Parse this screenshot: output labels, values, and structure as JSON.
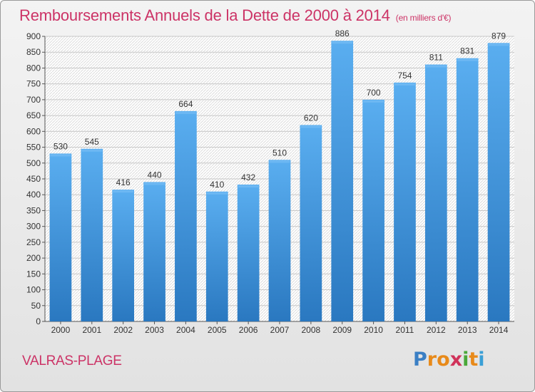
{
  "chart_data": {
    "type": "bar",
    "title": "Remboursements Annuels de la Dette de 2000 à 2014",
    "subtitle": "(en milliers d'€)",
    "categories": [
      "2000",
      "2001",
      "2002",
      "2003",
      "2004",
      "2005",
      "2006",
      "2007",
      "2008",
      "2009",
      "2010",
      "2011",
      "2012",
      "2013",
      "2014"
    ],
    "values": [
      530,
      545,
      416,
      440,
      664,
      410,
      432,
      510,
      620,
      886,
      700,
      754,
      811,
      831,
      879
    ],
    "ylim": [
      0,
      900
    ],
    "yticks": [
      0,
      50,
      100,
      150,
      200,
      250,
      300,
      350,
      400,
      450,
      500,
      550,
      600,
      650,
      700,
      750,
      800,
      850,
      900
    ],
    "grid": true,
    "bar_color": "#3a8fd6"
  },
  "footer": {
    "location": "VALRAS-PLAGE",
    "logo_letters": [
      "P",
      "r",
      "o",
      "x",
      "i",
      "t",
      "i"
    ],
    "logo_colors": [
      "#3a7fc4",
      "#e88a1a",
      "#e88a1a",
      "#d0325a",
      "#4aa83a",
      "#e88a1a",
      "#3a9fd6"
    ]
  }
}
